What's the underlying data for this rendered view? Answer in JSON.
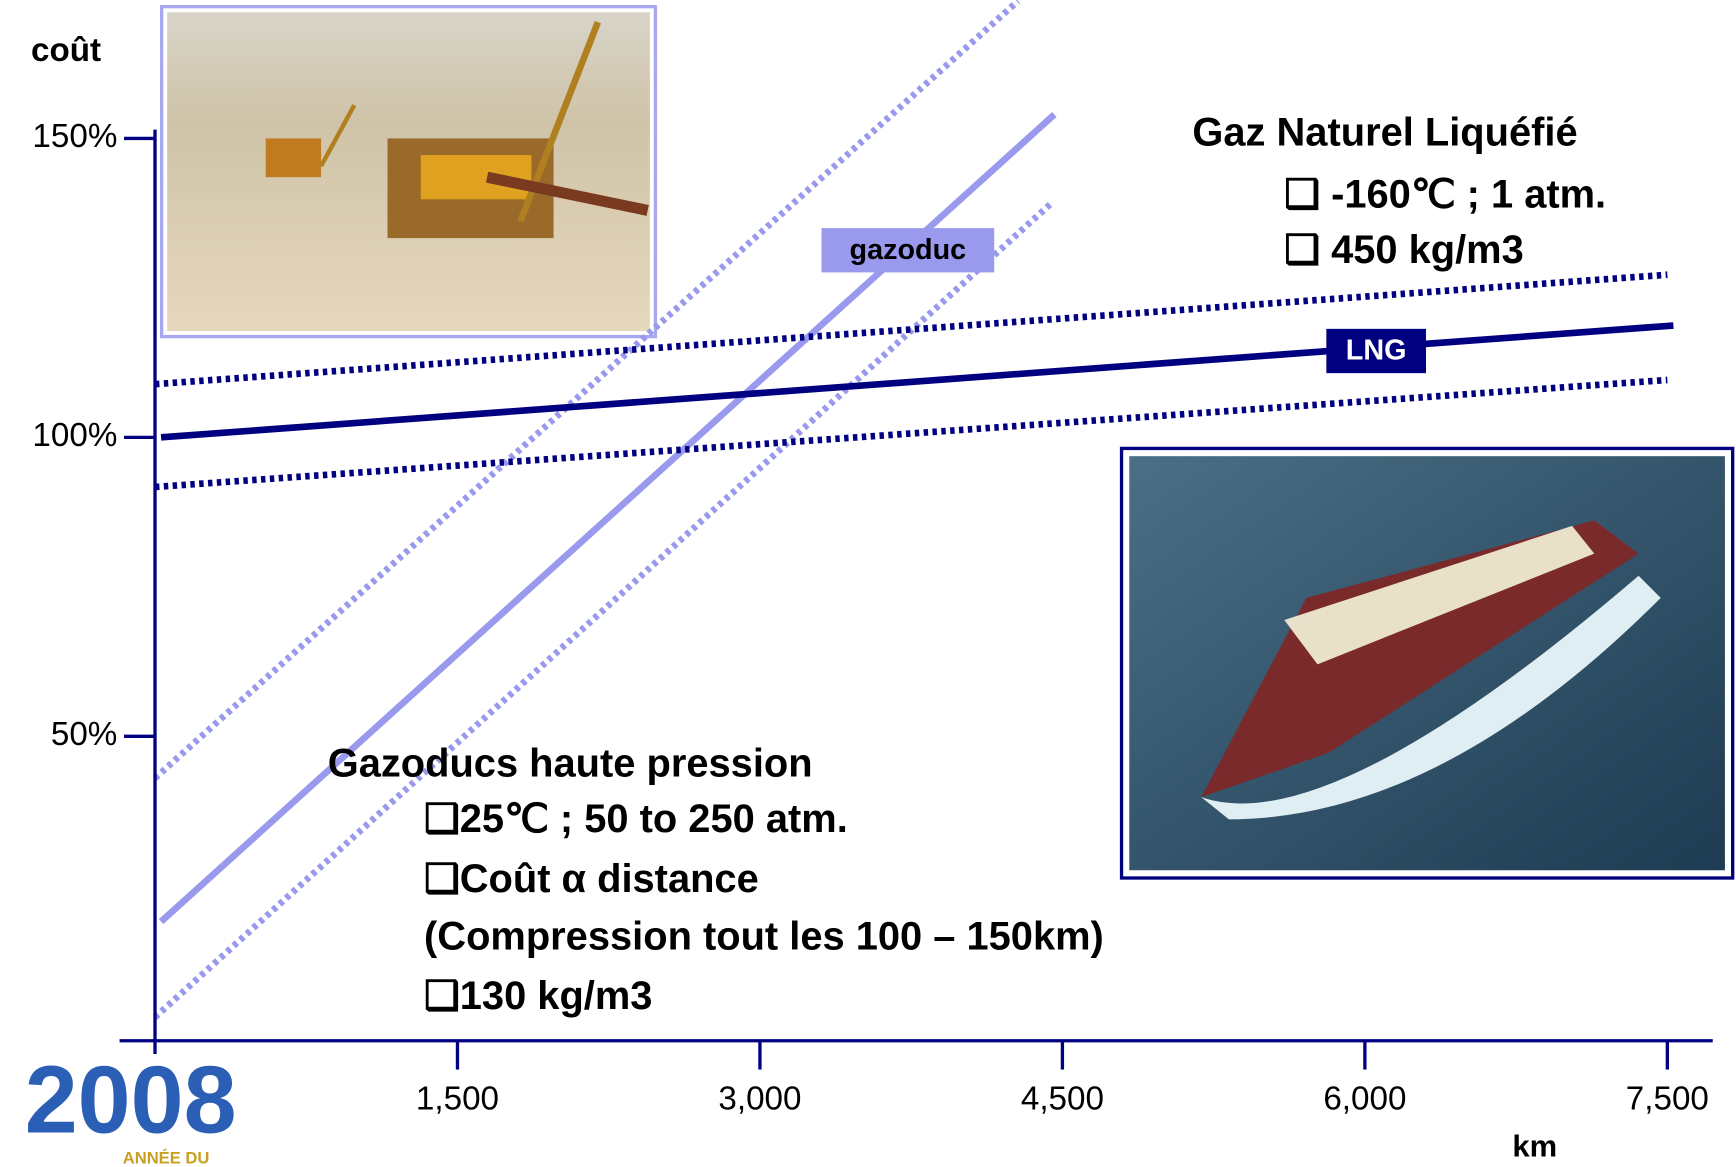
{
  "chart_data": {
    "type": "line",
    "ylabel": "coût",
    "xlabel": "km",
    "xlim": [
      0,
      7500
    ],
    "ylim": [
      0,
      150
    ],
    "xticks": [
      {
        "value": 1500,
        "label": "1,500"
      },
      {
        "value": 3000,
        "label": "3,000"
      },
      {
        "value": 4500,
        "label": "4,500"
      },
      {
        "value": 6000,
        "label": "6,000"
      },
      {
        "value": 7500,
        "label": "7,500"
      }
    ],
    "yticks": [
      {
        "value": 50,
        "label": "50%"
      },
      {
        "value": 100,
        "label": "100%"
      },
      {
        "value": 150,
        "label": "150%"
      }
    ],
    "series": [
      {
        "name": "gazoduc",
        "color": "#9999ee",
        "x": [
          30,
          4460
        ],
        "values": [
          19,
          154
        ]
      },
      {
        "color": "#9999ee",
        "dash": true,
        "x": [
          0,
          4280
        ],
        "values": [
          43,
          173
        ]
      },
      {
        "color": "#9999ee",
        "dash": true,
        "x": [
          0,
          4440
        ],
        "values": [
          3,
          139
        ]
      },
      {
        "name": "LNG",
        "color": "#000080",
        "x": [
          30,
          7530
        ],
        "values": [
          100,
          118.7
        ]
      },
      {
        "color": "#000080",
        "dash": true,
        "x": [
          0,
          7500
        ],
        "values": [
          108.9,
          127.2
        ]
      },
      {
        "color": "#000080",
        "dash": true,
        "x": [
          0,
          7500
        ],
        "values": [
          91.7,
          109.6
        ]
      }
    ],
    "annotations": {
      "lng_title": "Gaz Naturel Liquéfié",
      "lng_items": [
        "❑  -160℃ ; 1 atm.",
        "❑   450 kg/m3"
      ],
      "pipe_title": "Gazoducs haute pression",
      "pipe_items": [
        "❑25℃ ; 50 to 250 atm.",
        "❑Coût α distance",
        "(Compression tout les 100 – 150km)",
        "❑130 kg/m3"
      ]
    }
  },
  "logo": {
    "year": "2008",
    "caption": "ANNÉE DU"
  }
}
